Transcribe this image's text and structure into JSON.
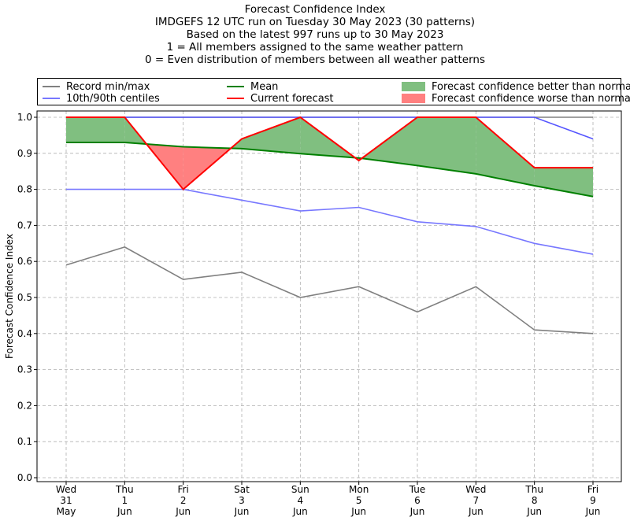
{
  "titles": [
    "Forecast Confidence Index",
    "IMDGEFS 12 UTC run on Tuesday 30 May 2023 (30 patterns)",
    "Based on the latest 997 runs up to 30 May 2023",
    "1 = All members assigned to the same weather pattern",
    "0 = Even distribution of members between all weather patterns"
  ],
  "legend": {
    "record": {
      "label": "Record min/max",
      "color": "#808080"
    },
    "centiles": {
      "label": "10th/90th centiles",
      "color": "#7777ff"
    },
    "mean": {
      "label": "Mean",
      "color": "#008000"
    },
    "current": {
      "label": "Current forecast",
      "color": "#ff0000"
    },
    "better": {
      "label": "Forecast confidence better than normal",
      "color": "#80bf80"
    },
    "worse": {
      "label": "Forecast confidence worse than normal",
      "color": "#ff8080"
    }
  },
  "chart_data": {
    "type": "line",
    "ylabel": "Forecast Confidence Index",
    "ylim": [
      0.0,
      1.0
    ],
    "yticks": [
      "0.0",
      "0.1",
      "0.2",
      "0.3",
      "0.4",
      "0.5",
      "0.6",
      "0.7",
      "0.8",
      "0.9",
      "1.0"
    ],
    "grid": true,
    "legend_position": "top",
    "x_labels": [
      [
        "Wed",
        "31",
        "May"
      ],
      [
        "Thu",
        "1",
        "Jun"
      ],
      [
        "Fri",
        "2",
        "Jun"
      ],
      [
        "Sat",
        "3",
        "Jun"
      ],
      [
        "Sun",
        "4",
        "Jun"
      ],
      [
        "Mon",
        "5",
        "Jun"
      ],
      [
        "Tue",
        "6",
        "Jun"
      ],
      [
        "Wed",
        "7",
        "Jun"
      ],
      [
        "Thu",
        "8",
        "Jun"
      ],
      [
        "Fri",
        "9",
        "Jun"
      ]
    ],
    "series": [
      {
        "name": "Record min/max",
        "role": "record_max",
        "color": "#808080",
        "values": [
          1.0,
          1.0,
          1.0,
          1.0,
          1.0,
          1.0,
          1.0,
          1.0,
          1.0,
          1.0
        ]
      },
      {
        "name": "Record min/max",
        "role": "record_min",
        "color": "#808080",
        "values": [
          0.59,
          0.64,
          0.55,
          0.57,
          0.5,
          0.53,
          0.46,
          0.53,
          0.41,
          0.4
        ]
      },
      {
        "name": "10th/90th centiles",
        "role": "p90",
        "color": "#5555ff",
        "values": [
          1.0,
          1.0,
          1.0,
          1.0,
          1.0,
          1.0,
          1.0,
          1.0,
          1.0,
          0.94
        ]
      },
      {
        "name": "10th/90th centiles",
        "role": "p10",
        "color": "#7777ff",
        "values": [
          0.8,
          0.8,
          0.8,
          0.77,
          0.74,
          0.75,
          0.71,
          0.697,
          0.65,
          0.62
        ]
      },
      {
        "name": "Mean",
        "role": "mean",
        "color": "#008000",
        "values": [
          0.93,
          0.93,
          0.918,
          0.913,
          0.899,
          0.887,
          0.866,
          0.843,
          0.81,
          0.78
        ]
      },
      {
        "name": "Current forecast",
        "role": "current",
        "color": "#ff0000",
        "values": [
          1.0,
          1.0,
          0.8,
          0.94,
          1.0,
          0.88,
          1.0,
          1.0,
          0.86,
          0.86
        ]
      }
    ]
  }
}
